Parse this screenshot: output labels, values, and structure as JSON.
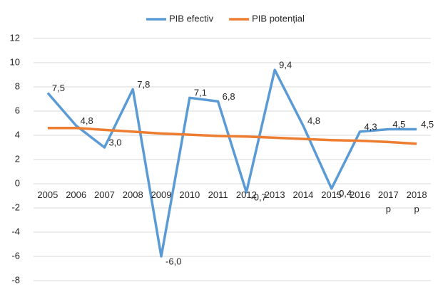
{
  "chart_data": {
    "type": "line",
    "categories": [
      "2005",
      "2006",
      "2007",
      "2008",
      "2009",
      "2010",
      "2011",
      "2012",
      "2013",
      "2014",
      "2015",
      "2016",
      "2017 p",
      "2018 p"
    ],
    "series": [
      {
        "name": "PIB efectiv",
        "color": "#5b9bd5",
        "values": [
          7.5,
          4.8,
          3.0,
          7.8,
          -6.0,
          7.1,
          6.8,
          -0.7,
          9.4,
          4.8,
          -0.4,
          4.3,
          4.5,
          4.5
        ],
        "value_labels": [
          "7,5",
          "4,8",
          "3,0",
          "7,8",
          "-6,0",
          "7,1",
          "6,8",
          "-0,7",
          "9,4",
          "4,8",
          "-0,4",
          "4,3",
          "4,5",
          "4,5"
        ]
      },
      {
        "name": "PIB potențial",
        "color": "#ed7d31",
        "values": [
          4.6,
          4.6,
          4.45,
          4.3,
          4.15,
          4.05,
          3.95,
          3.9,
          3.8,
          3.7,
          3.6,
          3.55,
          3.45,
          3.3
        ]
      }
    ],
    "ylim": [
      -8,
      12
    ],
    "yticks": [
      -8,
      -6,
      -4,
      -2,
      0,
      2,
      4,
      6,
      8,
      10,
      12
    ],
    "grid": true,
    "legend": "top"
  }
}
